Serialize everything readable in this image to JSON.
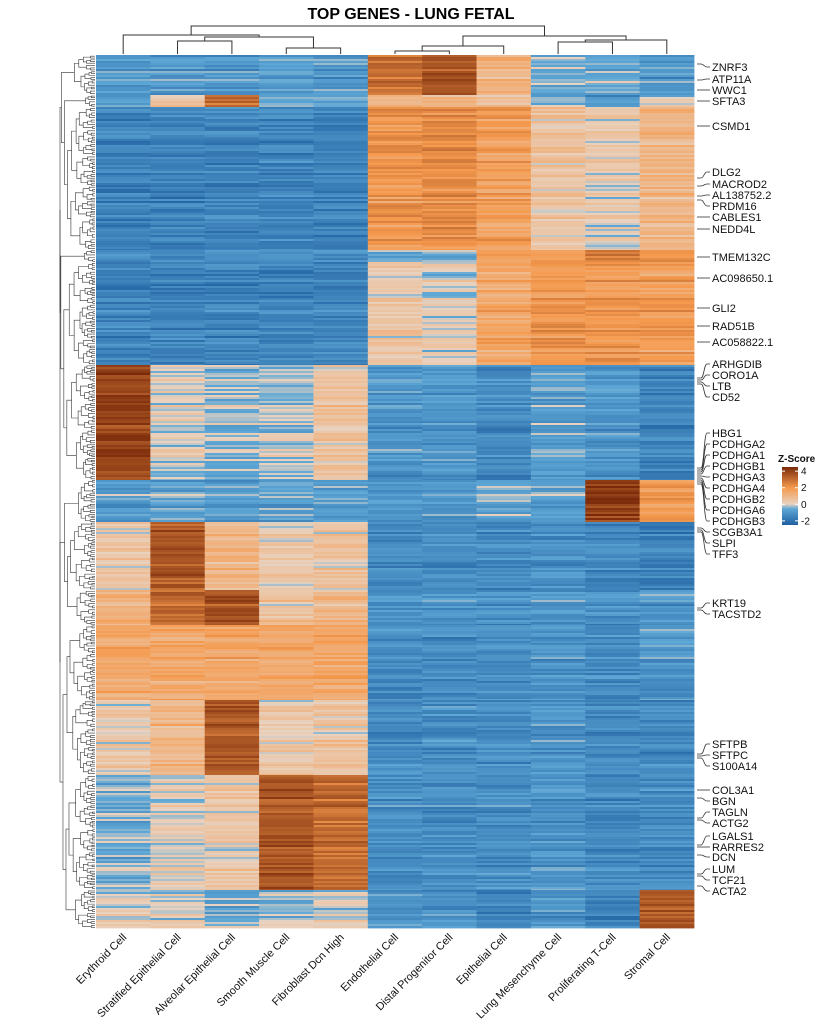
{
  "chart_data": {
    "type": "heatmap",
    "title": "TOP GENES - LUNG FETAL",
    "columns": [
      "Erythroid Cell",
      "Stratified Epithelial Cell",
      "Alveolar Epithelial Cell",
      "Smooth Muscle Cell",
      "Fibroblast Dcn High",
      "Endothelial Cell",
      "Distal Progenitor Cell",
      "Epithelial Cell",
      "Lung Mesenchyme Cell",
      "Proliferating T-Cell",
      "Stromal Cell"
    ],
    "row_blocks": [
      {
        "rows": 40,
        "values": [
          -1,
          -1,
          -1,
          -1,
          -1,
          3,
          3.5,
          1,
          -0.5,
          -0.5,
          -1
        ]
      },
      {
        "rows": 12,
        "values": [
          -0.5,
          0.5,
          3,
          -0.5,
          -0.5,
          1,
          1,
          0.5,
          -0.5,
          -1,
          0
        ]
      },
      {
        "rows": 143,
        "values": [
          -1.5,
          -1.5,
          -1.5,
          -1.5,
          -1.5,
          2,
          2.3,
          1.8,
          0.5,
          0.2,
          1
        ]
      },
      {
        "rows": 12,
        "values": [
          -1.5,
          -1.5,
          -1.5,
          -1.5,
          -1.5,
          -0.8,
          -0.8,
          1.5,
          1.5,
          2.5,
          2
        ]
      },
      {
        "rows": 103,
        "values": [
          -1.5,
          -1.5,
          -1.5,
          -1.5,
          -1.5,
          0.3,
          0,
          1.5,
          2,
          2,
          1.8
        ]
      },
      {
        "rows": 115,
        "values": [
          4,
          0,
          -0.3,
          -0.2,
          0.5,
          -1,
          -1,
          -1.3,
          -0.8,
          -1,
          -1.5
        ]
      },
      {
        "rows": 42,
        "values": [
          -0.8,
          -0.8,
          -0.8,
          -0.8,
          -0.8,
          -1,
          -1,
          -0.7,
          -0.8,
          4,
          2
        ]
      },
      {
        "rows": 68,
        "values": [
          0.5,
          3.5,
          1,
          0.3,
          0.5,
          -1.2,
          -1.2,
          -1.3,
          -1.1,
          -1.3,
          -1.5
        ]
      },
      {
        "rows": 35,
        "values": [
          1,
          3,
          3.5,
          0.5,
          0.8,
          -1.2,
          -1.2,
          -1.3,
          -1.1,
          -1.3,
          -1
        ]
      },
      {
        "rows": 75,
        "values": [
          1.5,
          1.5,
          1.6,
          1.5,
          1.5,
          -1.3,
          -1.3,
          -1.2,
          -1,
          -1.3,
          -1
        ]
      },
      {
        "rows": 75,
        "values": [
          0.3,
          1,
          3.5,
          0.5,
          0.5,
          -1.2,
          -1.2,
          -1.2,
          -1,
          -1.3,
          -1.3
        ]
      },
      {
        "rows": 115,
        "values": [
          -0.5,
          0,
          0.3,
          3.5,
          3,
          -1.2,
          -1.2,
          -1.2,
          -1,
          -1.3,
          -1.3
        ]
      },
      {
        "rows": 38,
        "values": [
          0,
          0,
          -0.5,
          -0.3,
          0,
          -1,
          -1,
          -1.5,
          -1,
          -1.5,
          3.5
        ]
      }
    ],
    "gene_labels": [
      "ZNRF3",
      "ATP11A",
      "WWC1",
      "SFTA3",
      "CSMD1",
      "DLG2",
      "MACROD2",
      "AL138752.2",
      "PRDM16",
      "CABLES1",
      "NEDD4L",
      "TMEM132C",
      "AC098650.1",
      "GLI2",
      "RAD51B",
      "AC058822.1",
      "ARHGDIB",
      "CORO1A",
      "LTB",
      "CD52",
      "HBG1",
      "PCDHGA2",
      "PCDHGA1",
      "PCDHGB1",
      "PCDHGA3",
      "PCDHGA4",
      "PCDHGB2",
      "PCDHGA6",
      "PCDHGB3",
      "SCGB3A1",
      "SLPI",
      "TFF3",
      "KRT19",
      "TACSTD2",
      "SFTPB",
      "SFTPC",
      "S100A14",
      "COL3A1",
      "BGN",
      "TAGLN",
      "ACTG2",
      "LGALS1",
      "RARRES2",
      "DCN",
      "LUM",
      "TCF21",
      "ACTA2"
    ],
    "legend": {
      "title": "Z-Score",
      "ticks": [
        4,
        2,
        0,
        -2
      ],
      "range": [
        -2.5,
        4.5
      ]
    },
    "colors": {
      "low": "#1f5fa0",
      "mid_low": "#5fa8d6",
      "mid": "#e8d2c0",
      "mid_high": "#f59a4e",
      "high": "#7a2a0a"
    },
    "row_dendrogram": true,
    "column_dendrogram": true
  }
}
